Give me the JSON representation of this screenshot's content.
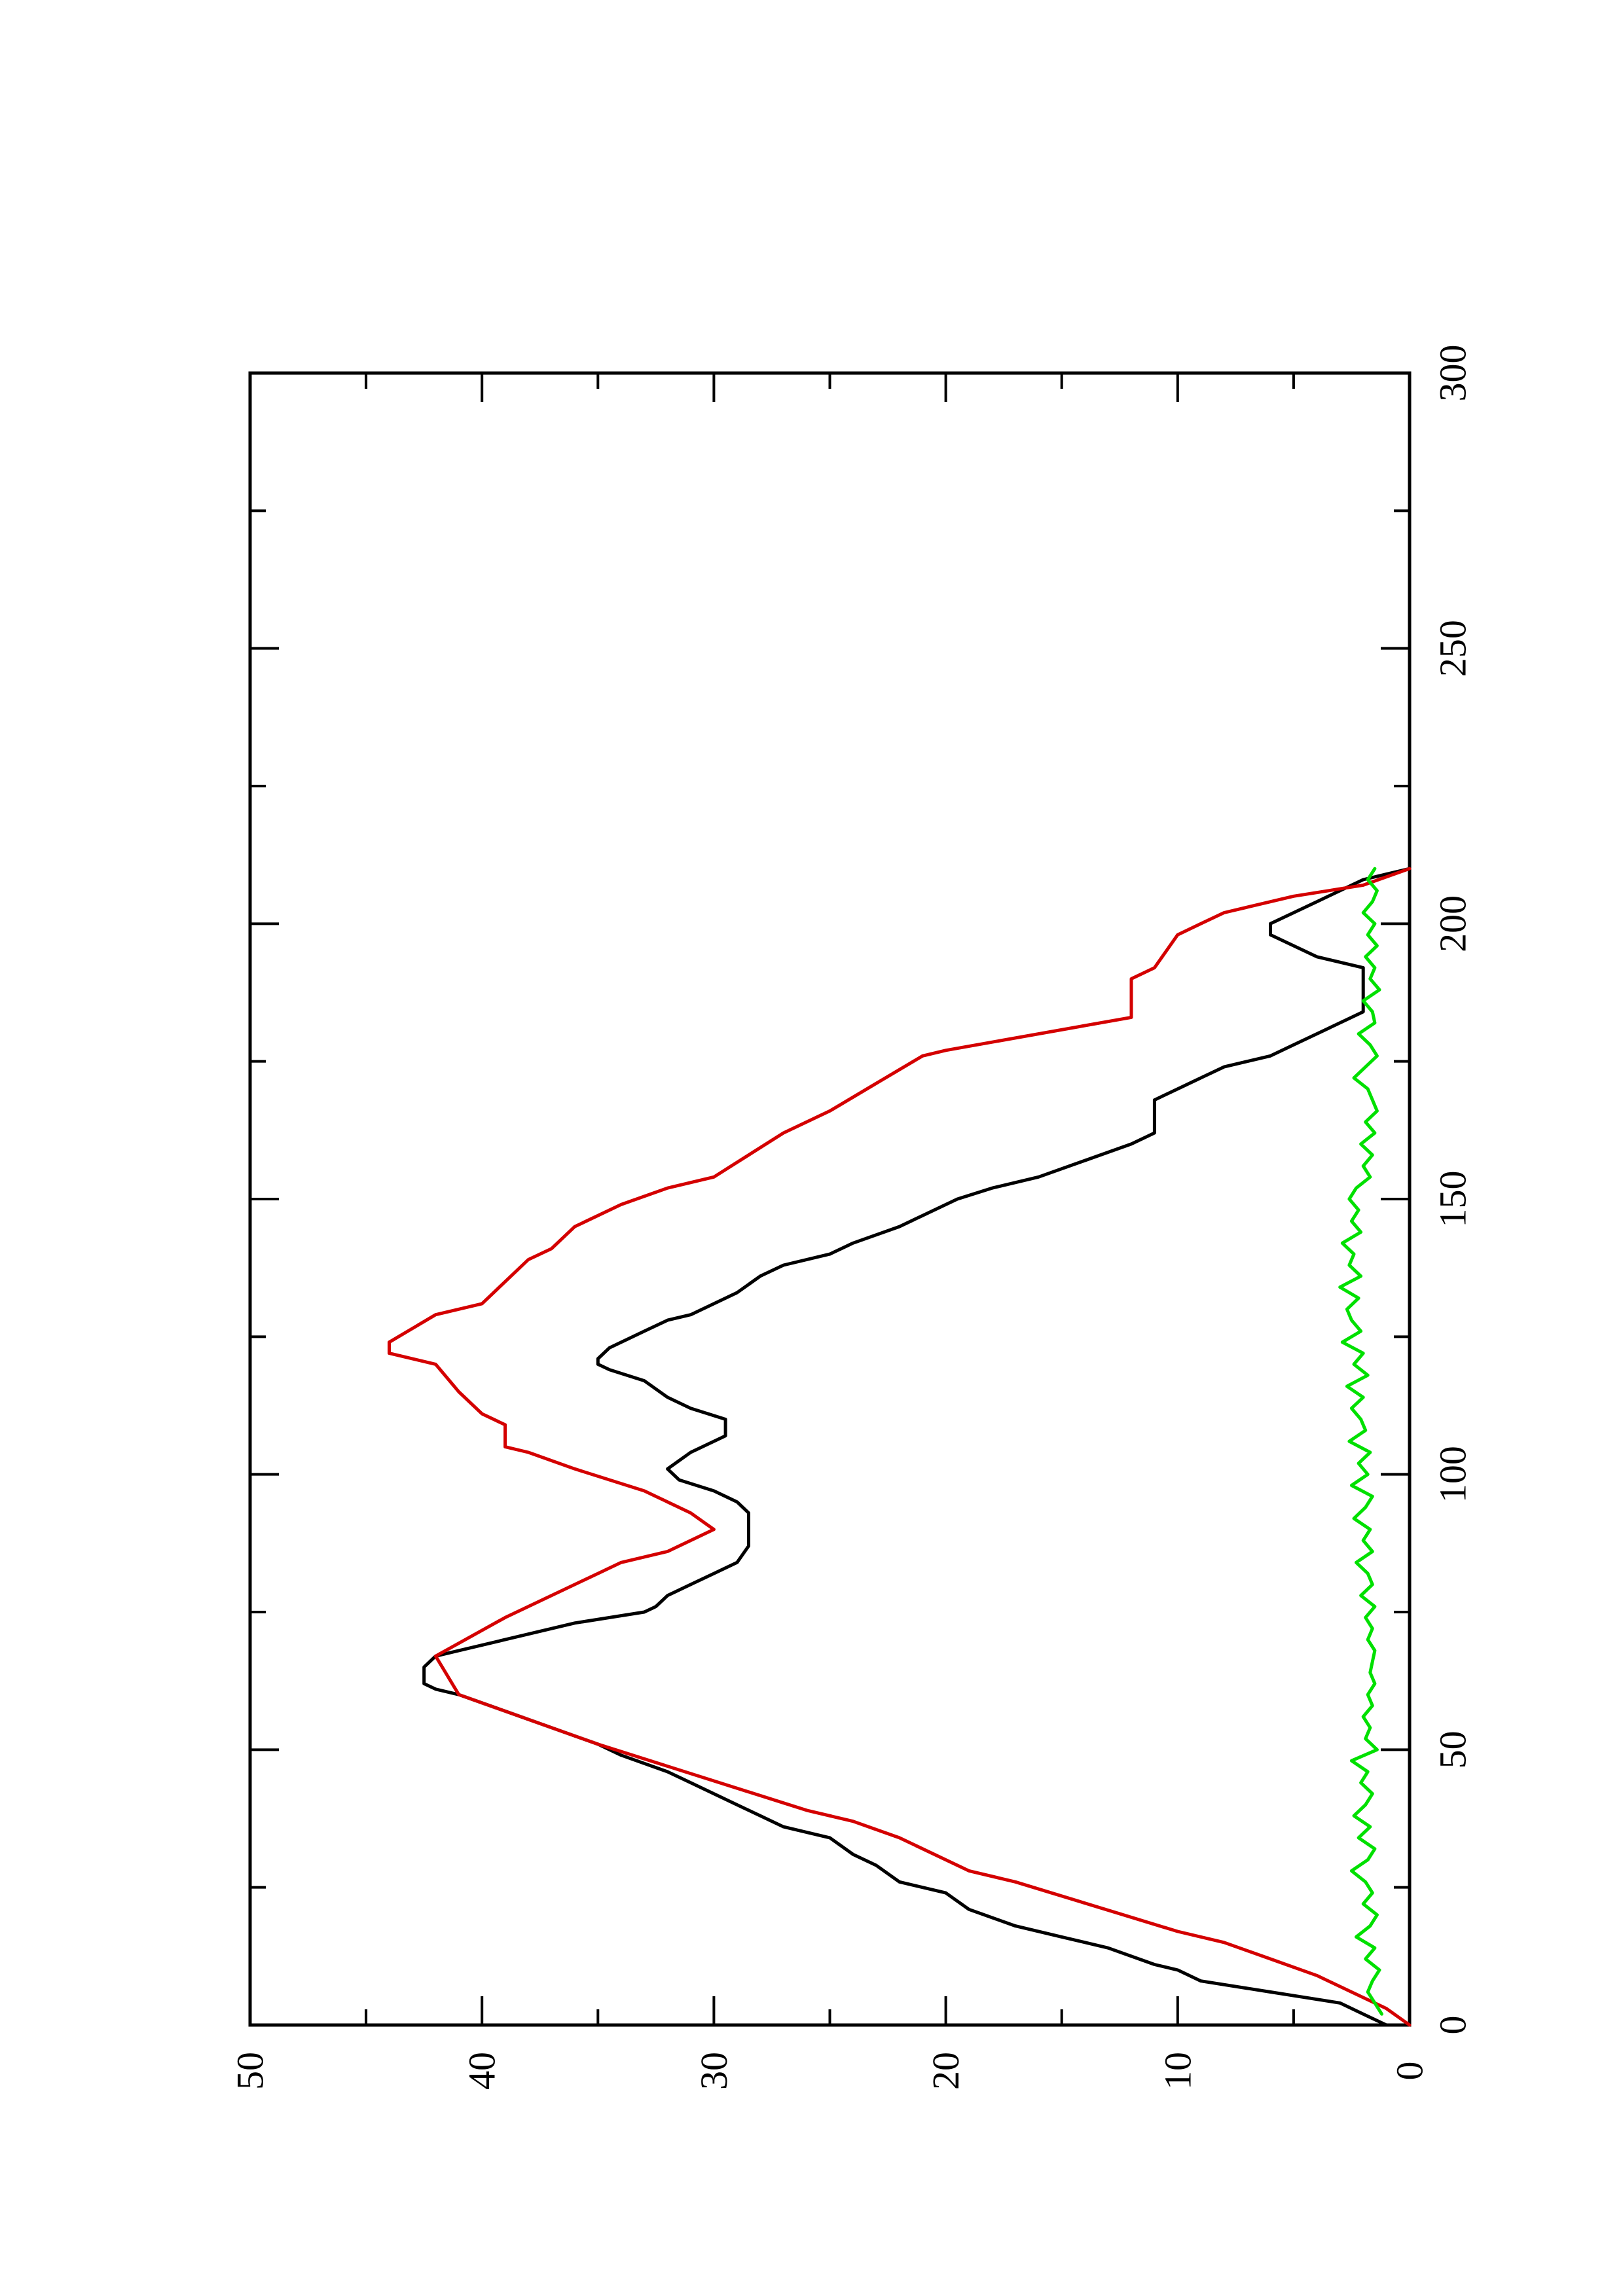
{
  "chart_data": {
    "type": "line",
    "orientation": "rotated-90-ccw",
    "title": "",
    "xlabel": "",
    "ylabel": "",
    "xlim": [
      0,
      300
    ],
    "ylim": [
      0,
      50
    ],
    "x_ticks": [
      0,
      50,
      100,
      150,
      200,
      250,
      300
    ],
    "y_ticks": [
      0,
      10,
      20,
      30,
      40,
      50
    ],
    "x_tick_labels": [
      "0",
      "50",
      "100",
      "150",
      "200",
      "250",
      "300"
    ],
    "y_tick_labels": [
      "0",
      "10",
      "20",
      "30",
      "40",
      "50"
    ],
    "x_minor_step": 25,
    "y_minor_step": 5,
    "grid": false,
    "legend": "none",
    "series": [
      {
        "color": "#000000",
        "x": [
          0,
          2,
          4,
          6,
          8,
          10,
          11,
          14,
          16,
          18,
          21,
          24,
          26,
          29,
          31,
          34,
          36,
          38,
          40,
          42,
          44,
          46,
          49,
          51,
          54,
          57,
          60,
          61,
          62,
          65,
          67,
          70,
          73,
          75,
          76,
          78,
          80,
          82,
          84,
          87,
          90,
          93,
          95,
          97,
          99,
          101,
          104,
          107,
          110,
          112,
          114,
          117,
          119,
          120,
          121,
          123,
          126,
          128,
          129,
          131,
          133,
          136,
          138,
          140,
          142,
          145,
          147,
          150,
          152,
          154,
          157,
          160,
          162,
          164,
          168,
          170,
          172,
          174,
          176,
          178,
          181,
          183,
          184,
          186,
          188,
          190,
          192,
          194,
          196,
          198,
          200,
          202,
          204,
          206,
          208,
          209,
          210
        ],
        "y": [
          1,
          2,
          3,
          6,
          9,
          10,
          11,
          13,
          15,
          17,
          19,
          20,
          22,
          23,
          24,
          25,
          27,
          28,
          29,
          30,
          31,
          32,
          34,
          35,
          37,
          39,
          41,
          42,
          42.5,
          42.5,
          42,
          39,
          36,
          33,
          32.5,
          32,
          31,
          30,
          29,
          28.5,
          28.5,
          28.5,
          29,
          30,
          31.5,
          32,
          31,
          29.5,
          29.5,
          31,
          32,
          33,
          34.5,
          35,
          35,
          34.5,
          33,
          32,
          31,
          30,
          29,
          28,
          27,
          25,
          24,
          22,
          21,
          19.5,
          18,
          16,
          14,
          12,
          11,
          11,
          11,
          10,
          9,
          8,
          6,
          5,
          3.5,
          2.5,
          2,
          2,
          2,
          2,
          2,
          4,
          5,
          6,
          6,
          5,
          4,
          3,
          2,
          1,
          0
        ]
      },
      {
        "color": "#d40000",
        "x": [
          0,
          3,
          9,
          12,
          15,
          17,
          26,
          28,
          34,
          37,
          39,
          51,
          60,
          67,
          74,
          82,
          84,
          86,
          90,
          93,
          97,
          101,
          104,
          105,
          109,
          111,
          115,
          120,
          122,
          124,
          129,
          131,
          139,
          141,
          145,
          149,
          152,
          154,
          162,
          166,
          171,
          176,
          177,
          183,
          187,
          190,
          192,
          198,
          200,
          202,
          205,
          207,
          210
        ],
        "y": [
          0,
          1,
          4,
          6,
          8,
          10,
          17,
          19,
          22,
          24,
          26,
          35,
          41,
          42,
          39,
          35,
          34,
          32,
          30,
          31,
          33,
          36,
          38,
          39,
          39,
          40,
          41,
          42,
          44,
          44,
          42,
          40,
          38,
          37,
          36,
          34,
          32,
          30,
          27,
          25,
          23,
          21,
          20,
          12,
          12,
          12,
          11,
          10,
          9,
          8,
          5,
          2,
          0
        ]
      },
      {
        "color": "#00e000",
        "x": [
          2,
          4,
          6,
          8,
          10,
          12,
          14,
          16,
          18,
          20,
          22,
          24,
          26,
          28,
          30,
          32,
          34,
          36,
          38,
          40,
          42,
          44,
          46,
          48,
          50,
          52,
          54,
          56,
          58,
          60,
          62,
          64,
          66,
          68,
          70,
          72,
          74,
          76,
          78,
          80,
          82,
          84,
          86,
          88,
          90,
          92,
          94,
          96,
          98,
          100,
          102,
          104,
          106,
          108,
          110,
          112,
          114,
          116,
          118,
          120,
          122,
          124,
          126,
          128,
          130,
          132,
          134,
          136,
          138,
          140,
          142,
          144,
          146,
          148,
          150,
          152,
          154,
          156,
          158,
          160,
          162,
          164,
          166,
          168,
          170,
          172,
          174,
          176,
          178,
          180,
          182,
          184,
          186,
          188,
          190,
          192,
          194,
          196,
          198,
          200,
          202,
          204,
          206,
          208,
          210
        ],
        "y": [
          1.2,
          1.5,
          1.8,
          1.6,
          1.3,
          1.9,
          1.5,
          2.3,
          1.7,
          1.4,
          2.0,
          1.6,
          1.9,
          2.5,
          1.8,
          1.5,
          2.2,
          1.7,
          2.4,
          1.9,
          1.6,
          2.1,
          1.8,
          2.5,
          1.4,
          1.9,
          1.7,
          2.0,
          1.6,
          1.8,
          1.5,
          1.7,
          1.6,
          1.5,
          1.8,
          1.6,
          1.9,
          1.5,
          2.1,
          1.6,
          1.8,
          2.3,
          1.6,
          2.0,
          1.7,
          2.4,
          1.9,
          1.6,
          2.5,
          1.8,
          2.2,
          1.7,
          2.6,
          1.9,
          2.1,
          2.5,
          2.0,
          2.7,
          1.8,
          2.4,
          2.0,
          2.9,
          2.1,
          2.5,
          2.7,
          2.2,
          3.0,
          2.1,
          2.6,
          2.4,
          2.9,
          2.1,
          2.5,
          2.2,
          2.6,
          2.3,
          1.7,
          2.0,
          1.6,
          2.1,
          1.5,
          1.9,
          1.4,
          1.6,
          1.8,
          2.4,
          1.9,
          1.4,
          1.7,
          2.2,
          1.5,
          1.6,
          2.0,
          1.3,
          1.7,
          1.5,
          1.9,
          1.4,
          1.8,
          1.5,
          2.0,
          1.6,
          1.4,
          1.8,
          1.5
        ]
      }
    ]
  }
}
